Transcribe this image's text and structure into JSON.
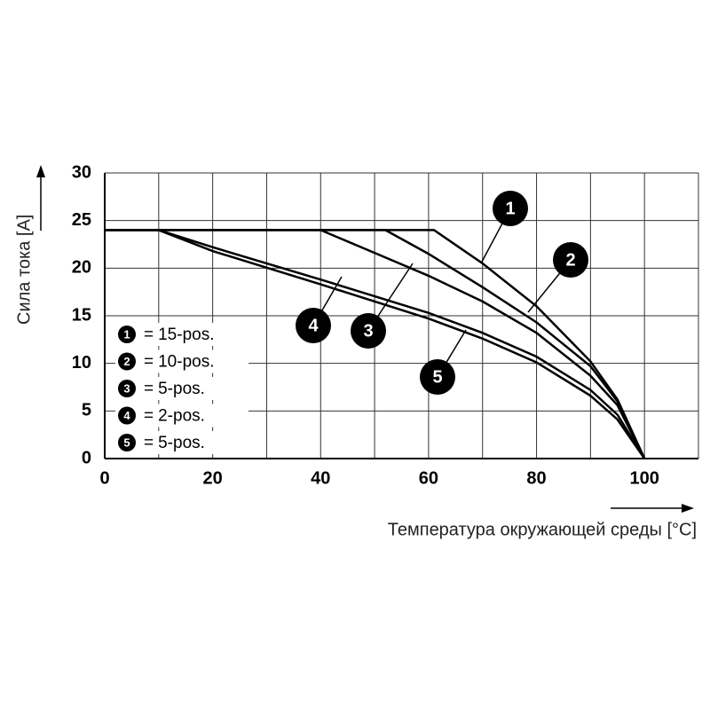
{
  "chart_data": {
    "type": "line",
    "xlabel": "Температура окружающей среды [°C]",
    "ylabel": "Сила тока [A]",
    "xlim": [
      0,
      110
    ],
    "ylim": [
      0,
      30
    ],
    "xticks": [
      0,
      20,
      40,
      60,
      80,
      100
    ],
    "yticks": [
      0,
      5,
      10,
      15,
      20,
      25,
      30
    ],
    "x_grid": [
      10,
      20,
      30,
      40,
      50,
      60,
      70,
      80,
      90,
      100,
      110
    ],
    "grid": true,
    "legend_separator": "=",
    "series": [
      {
        "name": "15-pos.",
        "marker": "1",
        "color": "#000000",
        "x": [
          0,
          61,
          70,
          80,
          90,
          95,
          100
        ],
        "values": [
          24,
          24,
          20.5,
          16,
          10.2,
          6.2,
          0
        ]
      },
      {
        "name": "10-pos.",
        "marker": "2",
        "color": "#000000",
        "x": [
          0,
          52,
          60,
          70,
          80,
          90,
          95,
          100
        ],
        "values": [
          24,
          24,
          21.5,
          18,
          14.3,
          9.7,
          6,
          0
        ]
      },
      {
        "name": "5-pos.",
        "marker": "3",
        "color": "#000000",
        "x": [
          0,
          40,
          50,
          60,
          70,
          80,
          90,
          95,
          100
        ],
        "values": [
          24,
          24,
          21.6,
          19.2,
          16.5,
          13.2,
          8.7,
          5.6,
          0
        ]
      },
      {
        "name": "2-pos.",
        "marker": "4",
        "color": "#000000",
        "x": [
          0,
          10,
          20,
          40,
          60,
          70,
          80,
          90,
          95,
          100
        ],
        "values": [
          24,
          24,
          22.2,
          18.8,
          15.3,
          13.2,
          10.7,
          7.2,
          4.6,
          0
        ]
      },
      {
        "name": "5-pos.",
        "marker": "5",
        "color": "#000000",
        "x": [
          0,
          10,
          20,
          40,
          60,
          70,
          80,
          90,
          95,
          100
        ],
        "values": [
          24,
          24,
          21.8,
          18.3,
          14.7,
          12.6,
          10.1,
          6.6,
          4.1,
          0
        ]
      }
    ]
  }
}
